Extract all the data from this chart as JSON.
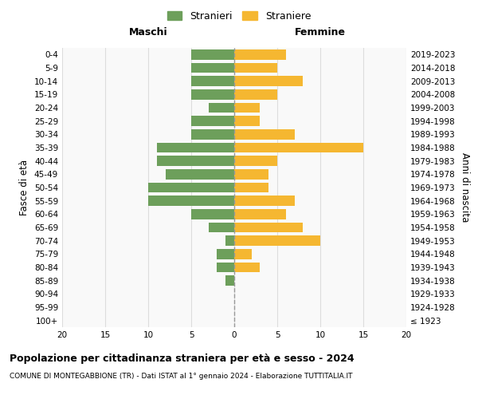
{
  "age_groups": [
    "100+",
    "95-99",
    "90-94",
    "85-89",
    "80-84",
    "75-79",
    "70-74",
    "65-69",
    "60-64",
    "55-59",
    "50-54",
    "45-49",
    "40-44",
    "35-39",
    "30-34",
    "25-29",
    "20-24",
    "15-19",
    "10-14",
    "5-9",
    "0-4"
  ],
  "birth_years": [
    "≤ 1923",
    "1924-1928",
    "1929-1933",
    "1934-1938",
    "1939-1943",
    "1944-1948",
    "1949-1953",
    "1954-1958",
    "1959-1963",
    "1964-1968",
    "1969-1973",
    "1974-1978",
    "1979-1983",
    "1984-1988",
    "1989-1993",
    "1994-1998",
    "1999-2003",
    "2004-2008",
    "2009-2013",
    "2014-2018",
    "2019-2023"
  ],
  "maschi": [
    0,
    0,
    0,
    1,
    2,
    2,
    1,
    3,
    5,
    10,
    10,
    8,
    9,
    9,
    5,
    5,
    3,
    5,
    5,
    5,
    5
  ],
  "femmine": [
    0,
    0,
    0,
    0,
    3,
    2,
    10,
    8,
    6,
    7,
    4,
    4,
    5,
    15,
    7,
    3,
    3,
    5,
    8,
    5,
    6
  ],
  "color_maschi": "#6d9f5b",
  "color_femmine": "#f5b731",
  "title": "Popolazione per cittadinanza straniera per età e sesso - 2024",
  "subtitle": "COMUNE DI MONTEGABBIONE (TR) - Dati ISTAT al 1° gennaio 2024 - Elaborazione TUTTITALIA.IT",
  "ylabel_left": "Fasce di età",
  "ylabel_right": "Anni di nascita",
  "xlabel_left": "Maschi",
  "xlabel_mid": "Femmine",
  "legend_maschi": "Stranieri",
  "legend_femmine": "Straniere",
  "xlim": 20,
  "background_color": "#f9f9f9",
  "grid_color": "#dddddd"
}
